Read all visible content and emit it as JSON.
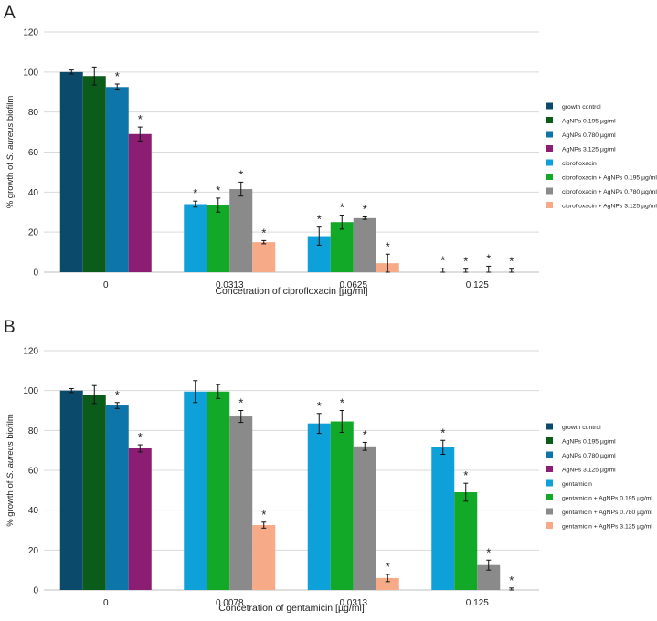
{
  "chart_data": [
    {
      "type": "bar",
      "panel_label": "A",
      "title": "",
      "xlabel": "Concetration of ciprofloxacin [µg/ml]",
      "ylabel_prefix": "% growth of ",
      "ylabel_italic": "S. aureus",
      "ylabel_suffix": " biofilm",
      "ylim": [
        0,
        120
      ],
      "yticks": [
        "0",
        "20",
        "40",
        "60",
        "80",
        "100",
        "120"
      ],
      "grid": true,
      "legend_position": "right",
      "groups": [
        {
          "category": "0",
          "bars": [
            {
              "series": "growth control",
              "value": 100,
              "err": 1,
              "star": false
            },
            {
              "series": "AgNPs 0.195 µg/ml",
              "value": 98,
              "err": 4.5,
              "star": false
            },
            {
              "series": "AgNPs 0.780 µg/ml",
              "value": 92.5,
              "err": 1.5,
              "star": true
            },
            {
              "series": "AgNPs 3.125 µg/ml",
              "value": 69,
              "err": 3.5,
              "star": true
            }
          ]
        },
        {
          "category": "0.0313",
          "bars": [
            {
              "series": "ciprofloxacin",
              "value": 34,
              "err": 1.5,
              "star": true
            },
            {
              "series": "ciprofloxacin + AgNPs 0.195 µg/ml",
              "value": 33.5,
              "err": 3.5,
              "star": true
            },
            {
              "series": "ciprofloxacin + AgNPs 0.780 µg/ml",
              "value": 41.5,
              "err": 3.5,
              "star": true
            },
            {
              "series": "ciprofloxacin + AgNPs 3.125 µg/ml",
              "value": 15,
              "err": 0.8,
              "star": true
            }
          ]
        },
        {
          "category": "0.0625",
          "bars": [
            {
              "series": "ciprofloxacin",
              "value": 18,
              "err": 4.5,
              "star": true
            },
            {
              "series": "ciprofloxacin + AgNPs 0.195 µg/ml",
              "value": 25,
              "err": 3.5,
              "star": true
            },
            {
              "series": "ciprofloxacin + AgNPs 0.780 µg/ml",
              "value": 27,
              "err": 0.6,
              "star": true
            },
            {
              "series": "ciprofloxacin + AgNPs 3.125 µg/ml",
              "value": 4.5,
              "err": 4.5,
              "star": true
            }
          ]
        },
        {
          "category": "0.125",
          "bars": [
            {
              "series": "ciprofloxacin",
              "value": 0,
              "err": 2,
              "star": true
            },
            {
              "series": "ciprofloxacin + AgNPs 0.195 µg/ml",
              "value": 0,
              "err": 1.5,
              "star": true
            },
            {
              "series": "ciprofloxacin + AgNPs 0.780 µg/ml",
              "value": 0,
              "err": 3,
              "star": true
            },
            {
              "series": "ciprofloxacin + AgNPs 3.125 µg/ml",
              "value": 0,
              "err": 1.5,
              "star": true
            }
          ]
        }
      ],
      "legend": [
        {
          "label": "growth control",
          "color": "#0c4a6b"
        },
        {
          "label": "AgNPs 0.195 µg/ml",
          "color": "#0b5c1a"
        },
        {
          "label": "AgNPs 0.780 µg/ml",
          "color": "#0e75a8"
        },
        {
          "label": "AgNPs 3.125 µg/ml",
          "color": "#8b1d73"
        },
        {
          "label": "ciprofloxacin",
          "color": "#0ea0d8"
        },
        {
          "label": "ciprofloxacin + AgNPs 0.195 µg/ml",
          "color": "#12a828"
        },
        {
          "label": "ciprofloxacin + AgNPs 0.780 µg/ml",
          "color": "#8a8a8a"
        },
        {
          "label": "ciprofloxacin + AgNPs 3.125 µg/ml",
          "color": "#f6aa88"
        }
      ]
    },
    {
      "type": "bar",
      "panel_label": "B",
      "title": "",
      "xlabel": "Concetration of gentamicin [µg/ml]",
      "ylabel_prefix": "% growth of ",
      "ylabel_italic": "S. aureus",
      "ylabel_suffix": " biofilm",
      "ylim": [
        0,
        120
      ],
      "yticks": [
        "0",
        "20",
        "40",
        "60",
        "80",
        "100",
        "120"
      ],
      "grid": true,
      "legend_position": "right",
      "groups": [
        {
          "category": "0",
          "bars": [
            {
              "series": "growth control",
              "value": 100,
              "err": 1,
              "star": false
            },
            {
              "series": "AgNPs 0.195 µg/ml",
              "value": 98,
              "err": 4.5,
              "star": false
            },
            {
              "series": "AgNPs 0.780 µg/ml",
              "value": 92.5,
              "err": 1.5,
              "star": true
            },
            {
              "series": "AgNPs 3.125 µg/ml",
              "value": 71,
              "err": 1.8,
              "star": true
            }
          ]
        },
        {
          "category": "0.0078",
          "bars": [
            {
              "series": "gentamicin",
              "value": 99.5,
              "err": 5.5,
              "star": false
            },
            {
              "series": "gentamicin + AgNPs 0.195 µg/ml",
              "value": 99.5,
              "err": 3.5,
              "star": false
            },
            {
              "series": "gentamicin + AgNPs 0.780 µg/ml",
              "value": 87,
              "err": 3,
              "star": true
            },
            {
              "series": "gentamicin + AgNPs 3.125 µg/ml",
              "value": 32.5,
              "err": 1.5,
              "star": true
            }
          ]
        },
        {
          "category": "0.0313",
          "bars": [
            {
              "series": "gentamicin",
              "value": 83.5,
              "err": 5,
              "star": true
            },
            {
              "series": "gentamicin + AgNPs 0.195 µg/ml",
              "value": 84.5,
              "err": 5.5,
              "star": true
            },
            {
              "series": "gentamicin + AgNPs 0.780 µg/ml",
              "value": 72,
              "err": 2,
              "star": true
            },
            {
              "series": "gentamicin + AgNPs 3.125 µg/ml",
              "value": 6,
              "err": 1.8,
              "star": true
            }
          ]
        },
        {
          "category": "0.125",
          "bars": [
            {
              "series": "gentamicin",
              "value": 71.5,
              "err": 3.5,
              "star": true
            },
            {
              "series": "gentamicin + AgNPs 0.195 µg/ml",
              "value": 49,
              "err": 4.5,
              "star": true
            },
            {
              "series": "gentamicin + AgNPs 0.780 µg/ml",
              "value": 12.5,
              "err": 2.5,
              "star": true
            },
            {
              "series": "gentamicin + AgNPs 3.125 µg/ml",
              "value": 0,
              "err": 1,
              "star": true
            }
          ]
        }
      ],
      "legend": [
        {
          "label": "growth control",
          "color": "#0c4a6b"
        },
        {
          "label": "AgNPs 0.195 µg/ml",
          "color": "#0b5c1a"
        },
        {
          "label": "AgNPs 0.780 µg/ml",
          "color": "#0e75a8"
        },
        {
          "label": "AgNPs 3.125 µg/ml",
          "color": "#8b1d73"
        },
        {
          "label": "gentamicin",
          "color": "#0ea0d8"
        },
        {
          "label": "gentamicin + AgNPs 0.195 µg/ml",
          "color": "#12a828"
        },
        {
          "label": "gentamicin + AgNPs 0.780 µg/ml",
          "color": "#8a8a8a"
        },
        {
          "label": "gentamicin + AgNPs 3.125 µg/ml",
          "color": "#f6aa88"
        }
      ]
    }
  ]
}
